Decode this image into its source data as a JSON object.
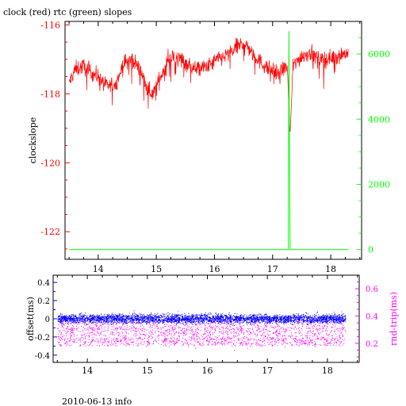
{
  "chart_data": [
    {
      "type": "line",
      "title": "clock (red) rtc (green) slopes",
      "xlim": [
        13.43,
        18.53
      ],
      "x_ticks": [
        14,
        15,
        16,
        17,
        18
      ],
      "x_tick_labels": [
        "14",
        "15",
        "16",
        "17",
        "18"
      ],
      "ylabel_left": "clockslope",
      "ylim_left": [
        -122.8,
        -115.9
      ],
      "y_ticks_left": [
        -116,
        -118,
        -120,
        -122
      ],
      "y_tick_labels_left": [
        "-116",
        "-118",
        "-120",
        "-122"
      ],
      "ylim_right": [
        -300,
        7000
      ],
      "y_ticks_right": [
        0,
        2000,
        4000,
        6000
      ],
      "y_tick_labels_right": [
        "0",
        "2000",
        "4000",
        "6000"
      ],
      "colors": {
        "axes": "#000000",
        "clock": "#ff0000",
        "rtc": "#00ff00",
        "left_axis": "#ff0000",
        "right_axis": "#00ff00"
      },
      "series": [
        {
          "axis": "left",
          "color": "#ff0000",
          "x": [
            13.5,
            13.6,
            13.75,
            13.9,
            14.0,
            14.15,
            14.3,
            14.45,
            14.6,
            14.75,
            14.85,
            14.95,
            15.05,
            15.2,
            15.35,
            15.5,
            15.7,
            15.9,
            16.05,
            16.2,
            16.35,
            16.5,
            16.65,
            16.8,
            16.95,
            17.1,
            17.25,
            17.3,
            17.35,
            17.5,
            17.65,
            17.8,
            17.95,
            18.1,
            18.3
          ],
          "y": [
            -117.7,
            -117.3,
            -117.2,
            -117.4,
            -117.5,
            -117.8,
            -117.7,
            -117.1,
            -117.0,
            -117.4,
            -117.9,
            -118.0,
            -117.6,
            -117.0,
            -116.9,
            -117.1,
            -117.3,
            -117.2,
            -117.0,
            -116.9,
            -116.7,
            -116.5,
            -116.8,
            -117.1,
            -117.3,
            -117.4,
            -117.2,
            -119.2,
            -117.2,
            -116.9,
            -116.8,
            -117.0,
            -117.0,
            -116.9,
            -116.8
          ]
        },
        {
          "axis": "right",
          "color": "#00ff00",
          "x": [
            13.5,
            17.27,
            17.28,
            17.29,
            17.3,
            18.3
          ],
          "y": [
            0,
            0,
            6700,
            3000,
            0,
            0
          ]
        }
      ]
    },
    {
      "type": "scatter",
      "title": "",
      "xlim": [
        13.43,
        18.53
      ],
      "x_ticks": [
        14,
        15,
        16,
        17,
        18
      ],
      "x_tick_labels": [
        "14",
        "15",
        "16",
        "17",
        "18"
      ],
      "ylabel_left": "offset(ms)",
      "ylim_left": [
        -0.48,
        0.48
      ],
      "y_ticks_left": [
        -0.4,
        -0.2,
        0,
        0.2,
        0.4
      ],
      "y_tick_labels_left": [
        "-0.4",
        "-0.2",
        "0",
        "0.2",
        "0.4"
      ],
      "ylabel_right": "rnd-trip(ms)",
      "ylim_right": [
        0.06,
        0.7
      ],
      "y_ticks_right": [
        0.2,
        0.4,
        0.6
      ],
      "y_tick_labels_right": [
        "0.2",
        "0.4",
        "0.6"
      ],
      "colors": {
        "axes": "#000000",
        "offset": "#0000ff",
        "round_trip": "#ff00ff",
        "left_axis": "#0000ff",
        "right_axis": "#ff00ff"
      },
      "series": [
        {
          "axis": "left",
          "color": "#0000ff",
          "x_range": [
            13.5,
            18.3
          ],
          "y_center": 0.0,
          "y_spread": 0.07
        },
        {
          "axis": "right",
          "color": "#ff00ff",
          "x_range": [
            13.5,
            18.3
          ],
          "y_center": 0.3,
          "y_spread": 0.11
        }
      ]
    }
  ],
  "footer": "2010-06-13 info"
}
